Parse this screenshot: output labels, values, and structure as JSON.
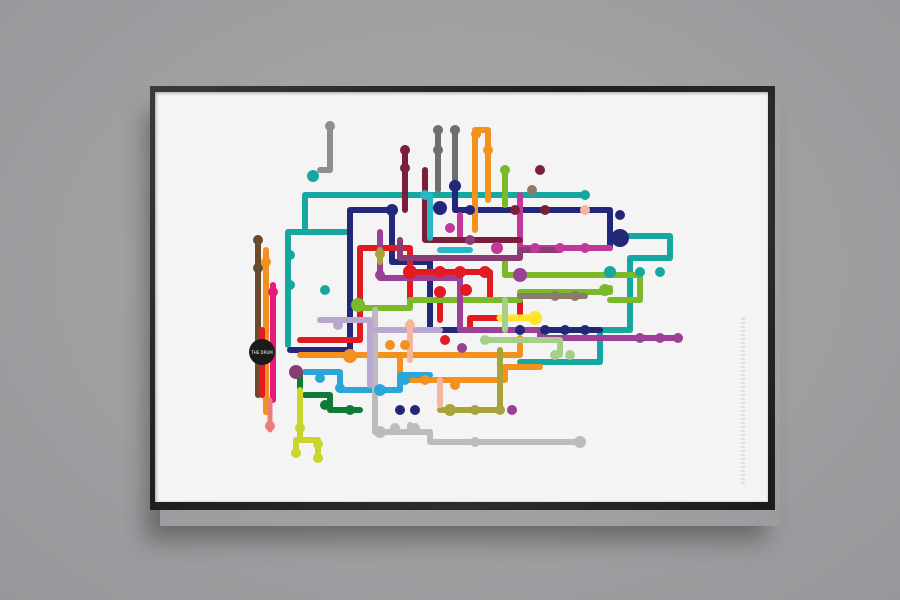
{
  "poster": {
    "central_station": "THE DRUM",
    "palette": {
      "brown": "#6b4a2b",
      "pink": "#e8197d",
      "red": "#e21a22",
      "teal": "#16a8a0",
      "navy": "#23277a",
      "orange": "#f3911e",
      "green": "#7ab929",
      "darkgreen": "#0f7a3a",
      "purple": "#9b3f97",
      "magenta": "#c0389a",
      "sky": "#2aa7d8",
      "yellow": "#ffe42a",
      "lime": "#c9d52a",
      "grey": "#bcbcbf",
      "darkgrey": "#6c6e70",
      "olive": "#a8a43a",
      "salmon": "#f07b7b",
      "lightgreen": "#a6cf8a",
      "maroon": "#7a1e3c",
      "plum": "#8a3c74",
      "taupe": "#8a7b6a",
      "lavender": "#b9a7cf",
      "peach": "#f5b6a0",
      "cyan": "#27b7c9"
    }
  }
}
